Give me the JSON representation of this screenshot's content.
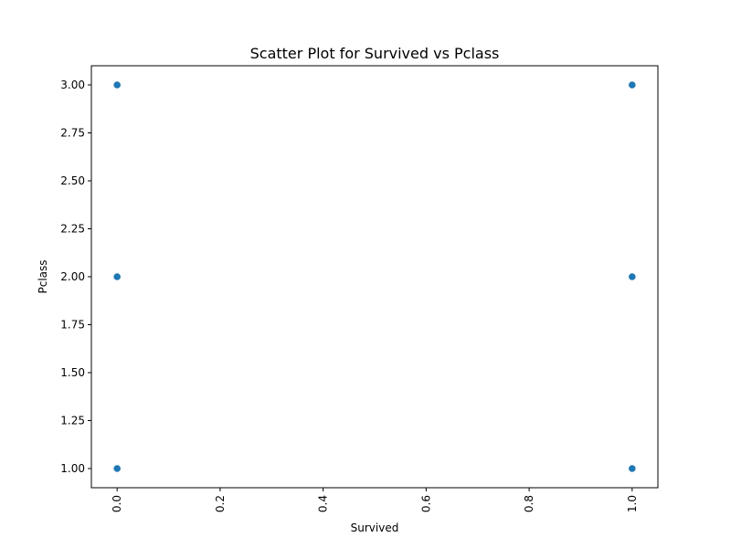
{
  "chart_data": {
    "type": "scatter",
    "title": "Scatter Plot for Survived vs Pclass",
    "xlabel": "Survived",
    "ylabel": "Pclass",
    "xlim": [
      -0.05,
      1.05
    ],
    "ylim": [
      0.9,
      3.1
    ],
    "x_ticks": [
      "0.0",
      "0.2",
      "0.4",
      "0.6",
      "0.8",
      "1.0"
    ],
    "y_ticks": [
      "1.00",
      "1.25",
      "1.50",
      "1.75",
      "2.00",
      "2.25",
      "2.50",
      "2.75",
      "3.00"
    ],
    "x_tick_rotation": "vertical",
    "grid": false,
    "points": [
      {
        "x": 0,
        "y": 3
      },
      {
        "x": 0,
        "y": 2
      },
      {
        "x": 0,
        "y": 1
      },
      {
        "x": 1,
        "y": 3
      },
      {
        "x": 1,
        "y": 2
      },
      {
        "x": 1,
        "y": 1
      }
    ],
    "marker_color": "#1f77b4",
    "marker_edge_color": "#ffffff"
  }
}
